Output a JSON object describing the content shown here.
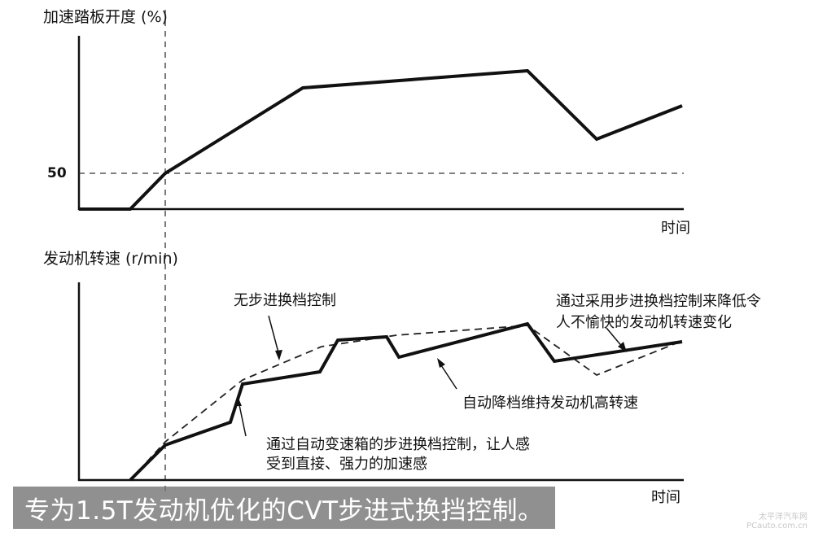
{
  "top_chart": {
    "ylabel": "加速踏板开度  (%)",
    "tick_50": "50",
    "xlabel": "时间"
  },
  "bottom_chart": {
    "ylabel": "发动机转速 (r/min)",
    "xlabel": "时间",
    "annotations": {
      "no_step": "无步进换档控制",
      "reduce_line1": "通过采用步进换档控制来降低令",
      "reduce_line2": "人不愉快的发动机转速变化",
      "downshift": "自动降档维持发动机高转速",
      "direct_line1": "通过自动变速箱的步进换档控制，让人感",
      "direct_line2": "受到直接、强力的加速感"
    }
  },
  "caption": "专为1.5T发动机优化的CVT步进式换挡控制。",
  "watermark": {
    "line1": "太平洋汽车网",
    "line2": "PCauto.com.cn"
  }
}
